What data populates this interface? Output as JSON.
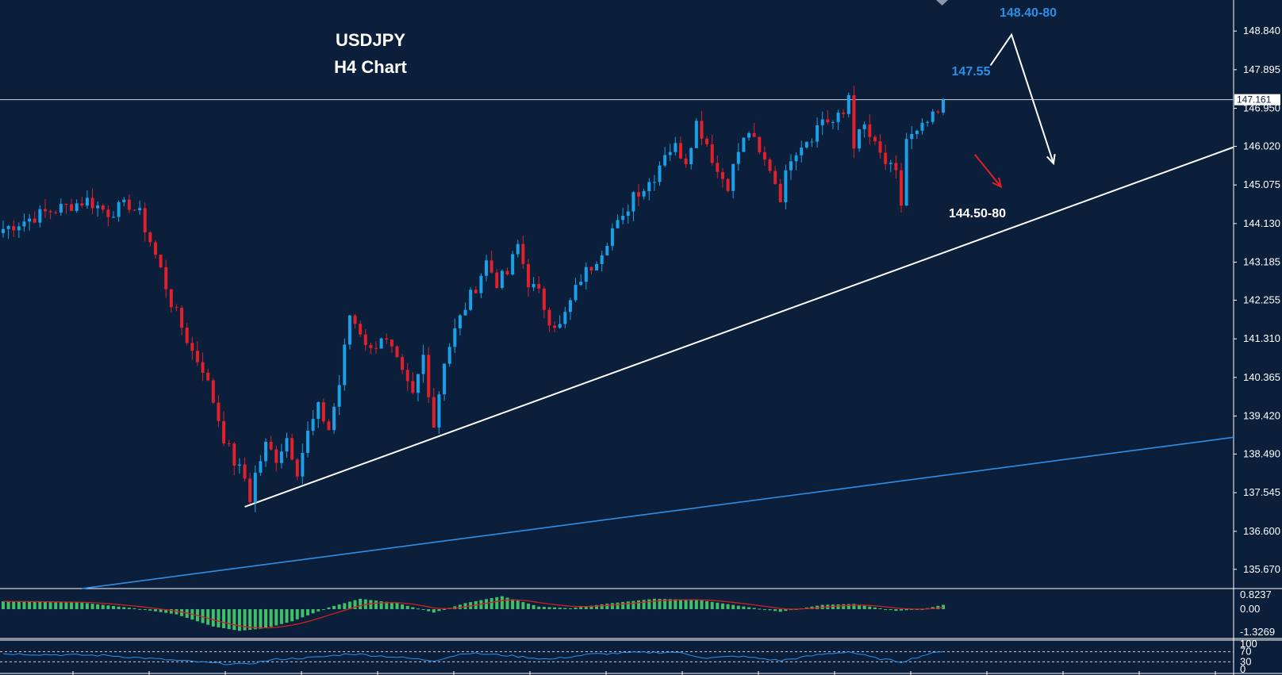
{
  "colors": {
    "background": "#0b1e3a",
    "bull": "#1ba0e8",
    "bear": "#e0202a",
    "trendline_primary": "#ffffff",
    "trendline_secondary": "#2f8fe6",
    "current_price_line": "#c9d4e2",
    "annotation_blue": "#2a8fe8",
    "annotation_white": "#ffffff",
    "arrow_red": "#e0202a",
    "macd_hist": "#3fbf6a",
    "macd_signal": "#d02020",
    "rsi_line": "#2f8fe6",
    "axis_text": "#ffffff"
  },
  "title": {
    "line1": "USDJPY",
    "line2": "H4 Chart"
  },
  "annotations": {
    "upper_target": "148.40-80",
    "resistance": "147.55",
    "support": "144.50-80"
  },
  "current_price": "147.161",
  "chart_data": {
    "type": "candlestick",
    "symbol": "USDJPY",
    "timeframe": "H4",
    "ylim": [
      135.2,
      149.6
    ],
    "y_ticks": [
      "148.840",
      "147.895",
      "146.950",
      "146.020",
      "145.075",
      "144.130",
      "143.185",
      "142.255",
      "141.310",
      "140.365",
      "139.420",
      "138.490",
      "137.545",
      "136.600",
      "135.670"
    ],
    "current_price": 147.161,
    "close_path": [
      [
        0,
        144.0
      ],
      [
        8,
        144.4
      ],
      [
        16,
        144.7
      ],
      [
        20,
        144.4
      ],
      [
        24,
        144.6
      ],
      [
        26,
        144.35
      ],
      [
        28,
        143.7
      ],
      [
        30,
        143.0
      ],
      [
        32,
        142.2
      ],
      [
        34,
        141.6
      ],
      [
        36,
        141.0
      ],
      [
        38,
        140.6
      ],
      [
        40,
        139.8
      ],
      [
        42,
        138.9
      ],
      [
        44,
        138.3
      ],
      [
        46,
        137.9
      ],
      [
        47,
        137.4
      ],
      [
        48,
        138.0
      ],
      [
        50,
        138.7
      ],
      [
        52,
        138.4
      ],
      [
        54,
        138.9
      ],
      [
        56,
        138.1
      ],
      [
        58,
        139.0
      ],
      [
        60,
        139.6
      ],
      [
        62,
        139.1
      ],
      [
        64,
        140.2
      ],
      [
        66,
        141.9
      ],
      [
        68,
        141.5
      ],
      [
        70,
        141.0
      ],
      [
        72,
        141.4
      ],
      [
        74,
        141.0
      ],
      [
        76,
        140.4
      ],
      [
        78,
        139.9
      ],
      [
        80,
        140.9
      ],
      [
        82,
        139.2
      ],
      [
        84,
        140.8
      ],
      [
        86,
        141.5
      ],
      [
        88,
        142.1
      ],
      [
        90,
        142.6
      ],
      [
        92,
        143.2
      ],
      [
        94,
        142.7
      ],
      [
        96,
        142.9
      ],
      [
        98,
        143.6
      ],
      [
        100,
        142.7
      ],
      [
        102,
        142.4
      ],
      [
        104,
        141.8
      ],
      [
        106,
        141.6
      ],
      [
        108,
        142.2
      ],
      [
        110,
        142.8
      ],
      [
        112,
        143.1
      ],
      [
        114,
        143.5
      ],
      [
        116,
        144.0
      ],
      [
        118,
        144.2
      ],
      [
        120,
        144.9
      ],
      [
        122,
        145.0
      ],
      [
        124,
        145.3
      ],
      [
        126,
        145.9
      ],
      [
        128,
        146.0
      ],
      [
        130,
        145.7
      ],
      [
        132,
        146.6
      ],
      [
        134,
        146.1
      ],
      [
        136,
        145.4
      ],
      [
        138,
        145.1
      ],
      [
        140,
        145.9
      ],
      [
        142,
        146.4
      ],
      [
        144,
        145.8
      ],
      [
        146,
        145.5
      ],
      [
        148,
        144.8
      ],
      [
        150,
        145.8
      ],
      [
        152,
        146.1
      ],
      [
        154,
        146.3
      ],
      [
        156,
        146.7
      ],
      [
        158,
        146.6
      ],
      [
        160,
        146.8
      ],
      [
        161,
        147.3
      ],
      [
        162,
        146.1
      ],
      [
        164,
        146.5
      ],
      [
        166,
        146.0
      ],
      [
        168,
        145.6
      ],
      [
        170,
        145.3
      ],
      [
        171,
        144.6
      ],
      [
        172,
        146.2
      ],
      [
        174,
        146.3
      ],
      [
        176,
        146.6
      ],
      [
        178,
        146.8
      ],
      [
        179,
        147.16
      ]
    ],
    "trendlines": [
      {
        "name": "primary",
        "from": [
          46,
          137.2
        ],
        "to": [
          235,
          146.0
        ]
      },
      {
        "name": "secondary",
        "from": [
          15,
          135.2
        ],
        "to": [
          235,
          138.9
        ]
      }
    ],
    "projections": [
      {
        "name": "bullish",
        "path": [
          [
            188,
            148.0
          ],
          [
            192,
            148.75
          ],
          [
            200,
            145.6
          ]
        ]
      },
      {
        "name": "bearish",
        "path": [
          [
            185,
            145.82
          ],
          [
            190,
            145.03
          ]
        ]
      }
    ],
    "macd": {
      "range": [
        -1.3269,
        0.8237
      ],
      "ticks": [
        "0.8237",
        "0.00",
        "-1.3269"
      ],
      "path": [
        [
          0,
          0.45
        ],
        [
          15,
          0.38
        ],
        [
          25,
          0.05
        ],
        [
          33,
          -0.3
        ],
        [
          40,
          -1.0
        ],
        [
          45,
          -1.25
        ],
        [
          50,
          -1.1
        ],
        [
          55,
          -0.7
        ],
        [
          62,
          0.1
        ],
        [
          68,
          0.6
        ],
        [
          75,
          0.35
        ],
        [
          82,
          -0.2
        ],
        [
          88,
          0.35
        ],
        [
          95,
          0.75
        ],
        [
          102,
          0.15
        ],
        [
          108,
          0.05
        ],
        [
          116,
          0.35
        ],
        [
          124,
          0.6
        ],
        [
          132,
          0.55
        ],
        [
          140,
          0.2
        ],
        [
          148,
          -0.15
        ],
        [
          156,
          0.25
        ],
        [
          162,
          0.3
        ],
        [
          170,
          -0.1
        ],
        [
          175,
          0.0
        ],
        [
          179,
          0.25
        ]
      ]
    },
    "rsi": {
      "levels": [
        "100",
        "70",
        "30",
        "0"
      ],
      "path": [
        [
          0,
          62
        ],
        [
          10,
          58
        ],
        [
          20,
          55
        ],
        [
          30,
          40
        ],
        [
          40,
          25
        ],
        [
          46,
          20
        ],
        [
          52,
          40
        ],
        [
          60,
          48
        ],
        [
          66,
          62
        ],
        [
          74,
          50
        ],
        [
          82,
          35
        ],
        [
          88,
          65
        ],
        [
          96,
          55
        ],
        [
          104,
          40
        ],
        [
          112,
          60
        ],
        [
          120,
          66
        ],
        [
          128,
          68
        ],
        [
          134,
          45
        ],
        [
          140,
          52
        ],
        [
          148,
          35
        ],
        [
          156,
          60
        ],
        [
          161,
          70
        ],
        [
          166,
          45
        ],
        [
          171,
          30
        ],
        [
          176,
          60
        ],
        [
          179,
          70
        ]
      ]
    }
  }
}
